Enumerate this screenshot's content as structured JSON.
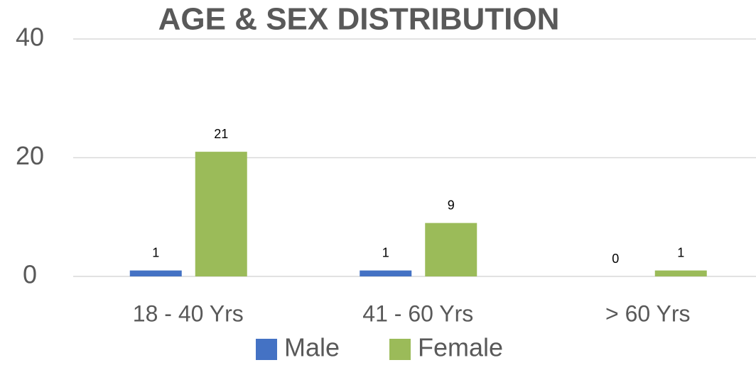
{
  "chart_data": {
    "type": "bar",
    "title": "AGE & SEX DISTRIBUTION",
    "categories": [
      "18 - 40 Yrs",
      "41 - 60 Yrs",
      "> 60 Yrs"
    ],
    "series": [
      {
        "name": "Male",
        "color": "#4472c4",
        "values": [
          1,
          1,
          0
        ]
      },
      {
        "name": "Female",
        "color": "#9bbb59",
        "values": [
          21,
          9,
          1
        ]
      }
    ],
    "ylim": [
      0,
      40
    ],
    "yticks": [
      0,
      20,
      40
    ],
    "grid": true,
    "legend": "bottom"
  }
}
